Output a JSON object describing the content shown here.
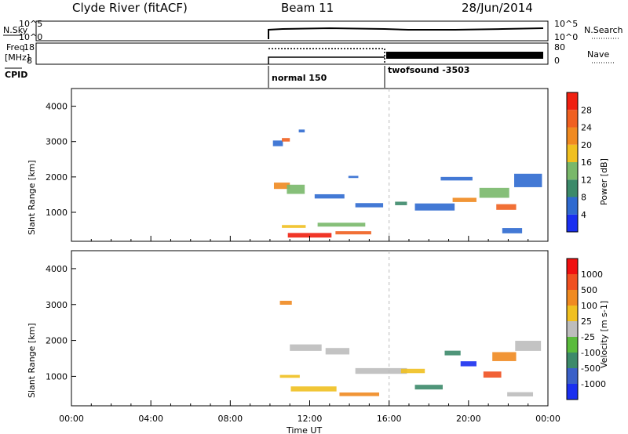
{
  "header": {
    "station": "Clyde River (fitACF)",
    "beam": "Beam 11",
    "date": "28/Jun/2014"
  },
  "params": {
    "nsky_label": "N.Sky",
    "nsearch_label": "N.Search",
    "freq_label_1": "Freq.",
    "freq_label_2": "[MHz]",
    "nave_label": "Nave",
    "cpid_label": "CPID",
    "noise_ticks": [
      "10^5",
      "10^0"
    ],
    "noise_right_ticks": [
      "10^5",
      "10^0"
    ],
    "freq_ticks": [
      "18",
      "8"
    ],
    "nave_ticks": [
      "80",
      "0"
    ],
    "cpid_segments": [
      {
        "start": "10:00",
        "label": "normal 150"
      },
      {
        "start": "16:00",
        "label": "twofsound -3503"
      }
    ]
  },
  "colors": {
    "power_scale": [
      "#1a2ff0",
      "#2f6ad0",
      "#3c8a6a",
      "#79b86a",
      "#f0c020",
      "#f08a20",
      "#f06020",
      "#f02010"
    ],
    "velocity_scale": [
      "#1a2ff0",
      "#3a60c8",
      "#3c8a6a",
      "#5abb3c",
      "#bdbdbd",
      "#f0c020",
      "#f08a20",
      "#f05020",
      "#f01010"
    ]
  },
  "chart_data": [
    {
      "type": "heatmap",
      "name": "power",
      "ylabel": "Slant Range [km]",
      "xlabel": "",
      "x_ticks": [
        "00:00",
        "04:00",
        "08:00",
        "12:00",
        "16:00",
        "20:00",
        "00:00"
      ],
      "y_ticks": [
        "1000",
        "2000",
        "3000",
        "4000"
      ],
      "ylim": [
        180,
        4500
      ],
      "colorbar_label": "Power [dB]",
      "colorbar_ticks": [
        "4",
        "8",
        "12",
        "16",
        "20",
        "24",
        "28"
      ],
      "data_start": "10:00",
      "blobs": [
        {
          "t": 12.0,
          "r": 350,
          "dt": 2.2,
          "dr": 130,
          "level": 7
        },
        {
          "t": 14.2,
          "r": 420,
          "dt": 1.8,
          "dr": 90,
          "level": 6
        },
        {
          "t": 11.2,
          "r": 600,
          "dt": 1.2,
          "dr": 80,
          "level": 4
        },
        {
          "t": 13.6,
          "r": 650,
          "dt": 2.4,
          "dr": 110,
          "level": 3
        },
        {
          "t": 10.6,
          "r": 1750,
          "dt": 0.8,
          "dr": 180,
          "level": 5
        },
        {
          "t": 11.3,
          "r": 1650,
          "dt": 0.9,
          "dr": 260,
          "level": 3
        },
        {
          "t": 13.0,
          "r": 1450,
          "dt": 1.5,
          "dr": 120,
          "level": 1
        },
        {
          "t": 15.0,
          "r": 1200,
          "dt": 1.4,
          "dr": 120,
          "level": 1
        },
        {
          "t": 18.3,
          "r": 1150,
          "dt": 2.0,
          "dr": 200,
          "level": 1
        },
        {
          "t": 19.8,
          "r": 1350,
          "dt": 1.2,
          "dr": 120,
          "level": 5
        },
        {
          "t": 21.3,
          "r": 1550,
          "dt": 1.5,
          "dr": 280,
          "level": 3
        },
        {
          "t": 21.9,
          "r": 1150,
          "dt": 1.0,
          "dr": 160,
          "level": 6
        },
        {
          "t": 23.0,
          "r": 1900,
          "dt": 1.4,
          "dr": 380,
          "level": 1
        },
        {
          "t": 10.4,
          "r": 2950,
          "dt": 0.5,
          "dr": 160,
          "level": 1
        },
        {
          "t": 10.8,
          "r": 3050,
          "dt": 0.4,
          "dr": 100,
          "level": 6
        },
        {
          "t": 11.6,
          "r": 3300,
          "dt": 0.3,
          "dr": 80,
          "level": 1
        },
        {
          "t": 14.2,
          "r": 2000,
          "dt": 0.5,
          "dr": 60,
          "level": 1
        },
        {
          "t": 19.4,
          "r": 1950,
          "dt": 1.6,
          "dr": 100,
          "level": 1
        },
        {
          "t": 16.6,
          "r": 1250,
          "dt": 0.6,
          "dr": 100,
          "level": 2
        },
        {
          "t": 22.2,
          "r": 480,
          "dt": 1.0,
          "dr": 150,
          "level": 1
        }
      ]
    },
    {
      "type": "heatmap",
      "name": "velocity",
      "ylabel": "Slant Range [km]",
      "xlabel": "Time UT",
      "x_ticks": [
        "00:00",
        "04:00",
        "08:00",
        "12:00",
        "16:00",
        "20:00",
        "00:00"
      ],
      "y_ticks": [
        "1000",
        "2000",
        "3000",
        "4000"
      ],
      "ylim": [
        180,
        4500
      ],
      "colorbar_label": "Velocity [m s-1]",
      "colorbar_ticks": [
        "1000",
        "500",
        "100",
        "25",
        "-25",
        "-100",
        "-500",
        "-1000"
      ],
      "data_start": "10:00",
      "blobs": [
        {
          "t": 12.2,
          "r": 650,
          "dt": 2.3,
          "dr": 140,
          "level": 5
        },
        {
          "t": 14.5,
          "r": 500,
          "dt": 2.0,
          "dr": 100,
          "level": 6
        },
        {
          "t": 11.0,
          "r": 1000,
          "dt": 1.0,
          "dr": 80,
          "level": 5
        },
        {
          "t": 11.8,
          "r": 1800,
          "dt": 1.6,
          "dr": 180,
          "level": 4
        },
        {
          "t": 13.4,
          "r": 1700,
          "dt": 1.2,
          "dr": 180,
          "level": 4
        },
        {
          "t": 15.6,
          "r": 1150,
          "dt": 2.6,
          "dr": 160,
          "level": 4
        },
        {
          "t": 18.0,
          "r": 700,
          "dt": 1.4,
          "dr": 130,
          "level": 2
        },
        {
          "t": 19.2,
          "r": 1650,
          "dt": 0.8,
          "dr": 130,
          "level": 2
        },
        {
          "t": 20.0,
          "r": 1350,
          "dt": 0.8,
          "dr": 140,
          "level": 0
        },
        {
          "t": 21.8,
          "r": 1550,
          "dt": 1.2,
          "dr": 250,
          "level": 6
        },
        {
          "t": 21.2,
          "r": 1050,
          "dt": 0.9,
          "dr": 170,
          "level": 7
        },
        {
          "t": 23.0,
          "r": 1850,
          "dt": 1.3,
          "dr": 280,
          "level": 4
        },
        {
          "t": 10.8,
          "r": 3050,
          "dt": 0.6,
          "dr": 110,
          "level": 6
        },
        {
          "t": 17.2,
          "r": 1150,
          "dt": 1.2,
          "dr": 120,
          "level": 5
        },
        {
          "t": 22.6,
          "r": 500,
          "dt": 1.3,
          "dr": 120,
          "level": 4
        }
      ]
    }
  ]
}
